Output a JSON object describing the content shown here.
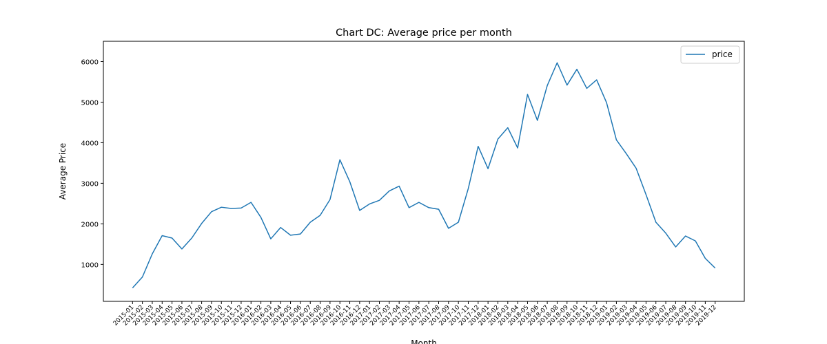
{
  "chart_data": {
    "type": "line",
    "title": "Chart DC: Average price per month",
    "xlabel": "Month",
    "ylabel": "Average Price",
    "ylim": [
      90,
      6500
    ],
    "yticks": [
      1000,
      2000,
      3000,
      4000,
      5000,
      6000
    ],
    "grid": false,
    "legend_position": "top-right",
    "color": "#1f77b4",
    "categories": [
      "2015-01",
      "2015-02",
      "2015-03",
      "2015-04",
      "2015-05",
      "2015-06",
      "2015-07",
      "2015-08",
      "2015-09",
      "2015-10",
      "2015-11",
      "2015-12",
      "2016-01",
      "2016-02",
      "2016-03",
      "2016-04",
      "2016-05",
      "2016-06",
      "2016-07",
      "2016-08",
      "2016-09",
      "2016-10",
      "2016-11",
      "2016-12",
      "2017-01",
      "2017-02",
      "2017-03",
      "2017-04",
      "2017-05",
      "2017-06",
      "2017-07",
      "2017-08",
      "2017-09",
      "2017-10",
      "2017-11",
      "2017-12",
      "2018-01",
      "2018-02",
      "2018-03",
      "2018-04",
      "2018-05",
      "2018-06",
      "2018-07",
      "2018-08",
      "2018-09",
      "2018-10",
      "2018-11",
      "2018-12",
      "2019-01",
      "2019-02",
      "2019-03",
      "2019-04",
      "2019-05",
      "2019-06",
      "2019-07",
      "2019-08",
      "2019-09",
      "2019-10",
      "2019-11",
      "2019-12"
    ],
    "series": [
      {
        "name": "price",
        "values": [
          420,
          690,
          1260,
          1710,
          1650,
          1380,
          1650,
          2010,
          2300,
          2410,
          2380,
          2390,
          2530,
          2160,
          1630,
          1910,
          1720,
          1750,
          2040,
          2210,
          2600,
          3580,
          3040,
          2330,
          2490,
          2580,
          2810,
          2930,
          2400,
          2530,
          2400,
          2360,
          1890,
          2040,
          2870,
          3910,
          3360,
          4090,
          4370,
          3870,
          5190,
          4550,
          5410,
          5970,
          5420,
          5810,
          5340,
          5550,
          4990,
          4070,
          3730,
          3370,
          2720,
          2040,
          1770,
          1430,
          1700,
          1580,
          1150,
          910
        ]
      }
    ]
  }
}
